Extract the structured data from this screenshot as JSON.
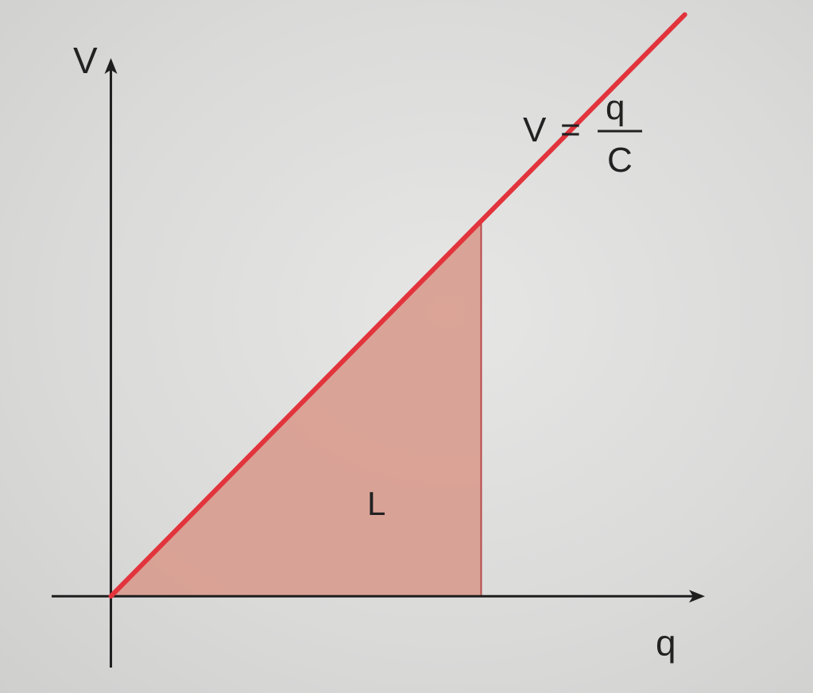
{
  "chart_data": {
    "type": "area",
    "xlabel": "q",
    "ylabel": "V",
    "grid": false,
    "legend": "none",
    "series": [
      {
        "name": "",
        "x": [
          0,
          1.55
        ],
        "y": [
          0,
          1.55
        ]
      }
    ],
    "shaded_region": {
      "label": "L",
      "x_from": 0,
      "x_to": 1.0,
      "under_series": 0
    },
    "annotation": {
      "lhs": "V",
      "equals": "=",
      "numerator": "q",
      "denominator": "C"
    },
    "xlim": [
      -0.16,
      1.6
    ],
    "ylim": [
      -0.19,
      1.43
    ]
  },
  "colors": {
    "line": "#e2343c",
    "shade": "#d8988a",
    "shade_edge": "#b84a4a",
    "axis": "#1e1e1e"
  }
}
